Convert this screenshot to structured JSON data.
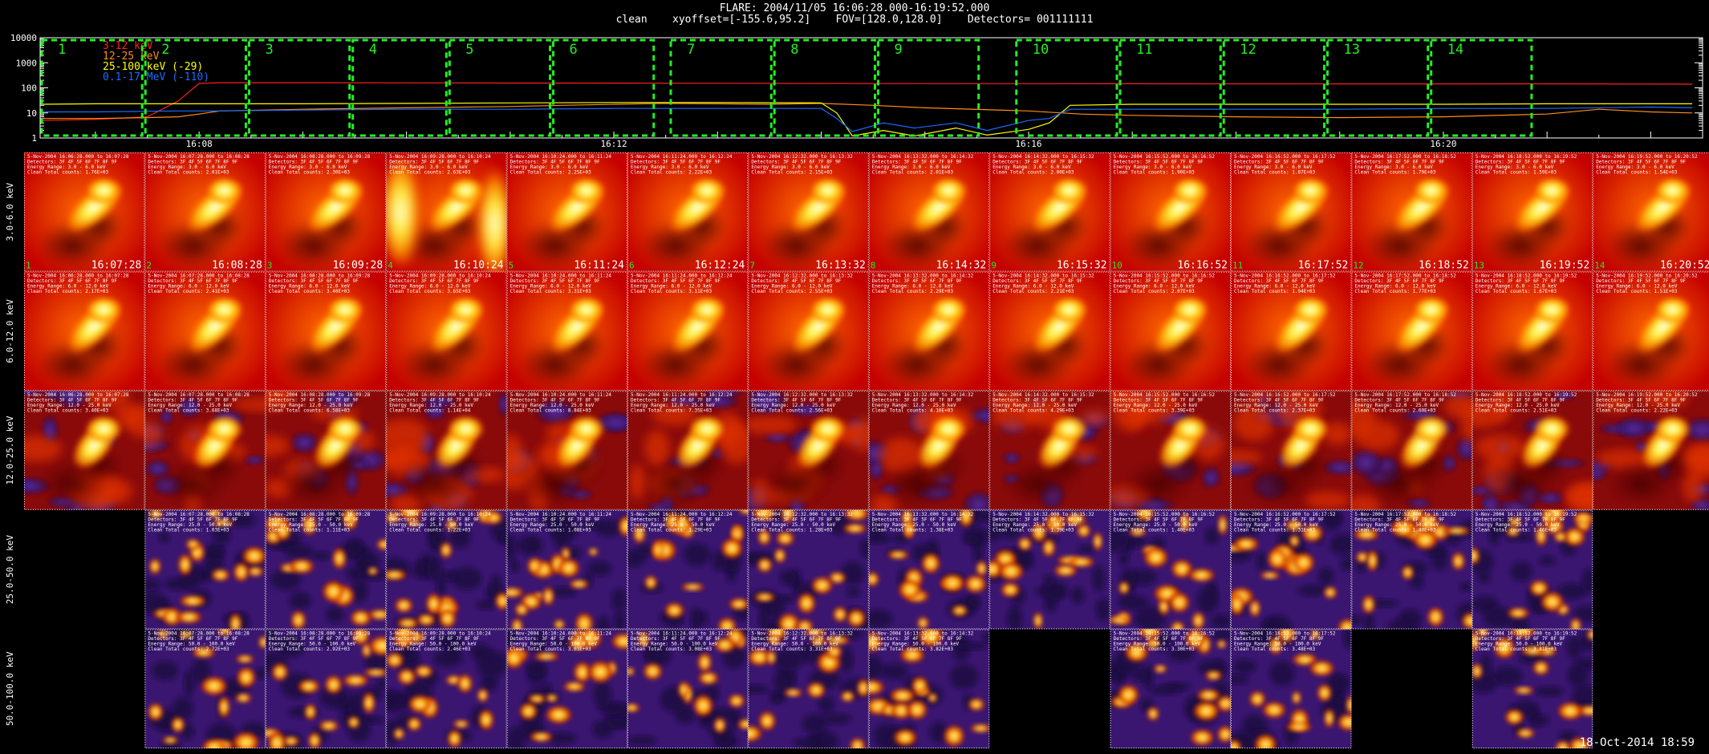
{
  "header": {
    "title_line1": "FLARE: 2004/11/05 16:06:28.000-16:19:52.000",
    "title_line2": "clean    xyoffset=[-155.6,95.2]    FOV=[128.0,128.0]    Detectors= 001111111"
  },
  "footer": {
    "stamp": "18-Oct-2014  18:59"
  },
  "colors": {
    "c1": "#ff2020",
    "c2": "#ff8c1a",
    "c3": "#ffff00",
    "c4": "#1a6cff",
    "box": "#22ee22",
    "axis": "#ffffff"
  },
  "chart_data": [
    {
      "type": "line",
      "title": "",
      "ylim": [
        1,
        10000
      ],
      "yscale": "log",
      "ytick_labels": [
        "1",
        "10",
        "100",
        "1000",
        "10000"
      ],
      "xrange": [
        "16:06:28",
        "16:22:30"
      ],
      "xtick_labels": [
        {
          "label": "16:08",
          "t": 8.0
        },
        {
          "label": "16:12",
          "t": 12.0
        },
        {
          "label": "16:16",
          "t": 16.0
        },
        {
          "label": "16:20",
          "t": 20.0
        }
      ],
      "legend": "top-left",
      "series": [
        {
          "name": "3-12 keV",
          "color": "#ff2020",
          "x": [
            6.47,
            7.0,
            7.5,
            7.8,
            8.0,
            8.2,
            9,
            10,
            11,
            12,
            13,
            14,
            15,
            16,
            17,
            18,
            19,
            20,
            21,
            22.4
          ],
          "y": [
            5,
            5.5,
            7,
            30,
            150,
            160,
            160,
            158,
            156,
            155,
            152,
            150,
            148,
            147,
            146,
            145,
            144,
            143,
            145,
            140
          ]
        },
        {
          "name": "12-25 keV",
          "color": "#ff8c1a",
          "x": [
            6.47,
            7.0,
            7.5,
            7.8,
            8.0,
            8.2,
            9,
            10,
            11,
            11.5,
            12,
            12.5,
            13,
            13.5,
            14,
            14.5,
            15,
            16,
            16.5,
            17,
            18,
            19,
            20,
            21,
            21.5,
            22,
            22.4
          ],
          "y": [
            6,
            6,
            6.5,
            7,
            9,
            12,
            14,
            16,
            18,
            20,
            22,
            24,
            23,
            22,
            24,
            20,
            16,
            12,
            9,
            8,
            7,
            6.5,
            7,
            9,
            14,
            11,
            10
          ]
        },
        {
          "name": "25-100 keV (-29)",
          "color": "#ffff00",
          "x": [
            6.47,
            7.0,
            7.8,
            8.2,
            9,
            10,
            11,
            12,
            13,
            14,
            14.15,
            14.3,
            14.6,
            14.9,
            15.3,
            15.6,
            16,
            16.2,
            16.4,
            17,
            18,
            19,
            20,
            21,
            22,
            22.4
          ],
          "y": [
            22,
            23,
            23,
            23,
            23,
            24,
            25,
            26,
            26,
            25,
            10,
            1.2,
            2,
            1.2,
            2.5,
            1.3,
            2.2,
            4,
            20,
            22,
            22,
            22,
            22,
            23,
            23,
            23
          ]
        },
        {
          "name": "0.1-17 MeV (-110)",
          "color": "#1a6cff",
          "x": [
            6.47,
            7.0,
            7.8,
            8.2,
            9,
            10,
            11,
            12,
            13,
            14,
            14.15,
            14.3,
            14.6,
            14.9,
            15.3,
            15.6,
            16,
            16.2,
            16.4,
            17,
            18,
            19,
            20,
            21,
            22,
            22.4
          ],
          "y": [
            11,
            11,
            12,
            12,
            13,
            14,
            14,
            15,
            15,
            15,
            6,
            1.8,
            4,
            2.5,
            4,
            2,
            5,
            6,
            14,
            14,
            14,
            14,
            15,
            15,
            17,
            16
          ]
        }
      ],
      "intervals": [
        {
          "label": "1",
          "start": "16:06:28",
          "end": "16:07:28"
        },
        {
          "label": "2",
          "start": "16:07:28",
          "end": "16:08:28"
        },
        {
          "label": "3",
          "start": "16:08:28",
          "end": "16:09:28"
        },
        {
          "label": "4",
          "start": "16:09:28",
          "end": "16:10:24"
        },
        {
          "label": "5",
          "start": "16:10:24",
          "end": "16:11:24"
        },
        {
          "label": "6",
          "start": "16:11:24",
          "end": "16:12:24"
        },
        {
          "label": "7",
          "start": "16:12:32",
          "end": "16:13:32"
        },
        {
          "label": "8",
          "start": "16:13:32",
          "end": "16:14:32"
        },
        {
          "label": "9",
          "start": "16:14:32",
          "end": "16:15:32"
        },
        {
          "label": "10",
          "start": "16:15:52",
          "end": "16:16:52"
        },
        {
          "label": "11",
          "start": "16:16:52",
          "end": "16:17:52"
        },
        {
          "label": "12",
          "start": "16:17:52",
          "end": "16:18:52"
        },
        {
          "label": "13",
          "start": "16:18:52",
          "end": "16:19:52"
        },
        {
          "label": "14",
          "start": "16:19:52",
          "end": "16:20:52"
        }
      ]
    },
    {
      "type": "heatmap",
      "title": "",
      "rows": [
        "3.0-6.0 keV",
        "6.0-12.0 keV",
        "12.0-25.0 keV",
        "25.0-50.0 keV",
        "50.0-100.0 keV"
      ],
      "row_energy": [
        "3.0 - 6.0 keV",
        "6.0 - 12.0 keV",
        "12.0 - 25.0 keV",
        "25.0 - 50.0 keV",
        "50.0 - 100.0 keV"
      ],
      "columns": [
        {
          "idx": "1",
          "date": "5-Nov-2004",
          "start": "16:06:28.000",
          "end": "16:07:28",
          "time": "16:07:28"
        },
        {
          "idx": "2",
          "date": "5-Nov-2004",
          "start": "16:07:28.000",
          "end": "16:08:28",
          "time": "16:08:28"
        },
        {
          "idx": "3",
          "date": "5-Nov-2004",
          "start": "16:08:28.000",
          "end": "16:09:28",
          "time": "16:09:28"
        },
        {
          "idx": "4",
          "date": "5-Nov-2004",
          "start": "16:09:28.000",
          "end": "16:10:24",
          "time": "16:10:24"
        },
        {
          "idx": "5",
          "date": "5-Nov-2004",
          "start": "16:10:24.000",
          "end": "16:11:24",
          "time": "16:11:24"
        },
        {
          "idx": "6",
          "date": "5-Nov-2004",
          "start": "16:11:24.000",
          "end": "16:12:24",
          "time": "16:12:24"
        },
        {
          "idx": "7",
          "date": "5-Nov-2004",
          "start": "16:12:32.000",
          "end": "16:13:32",
          "time": "16:13:32"
        },
        {
          "idx": "8",
          "date": "5-Nov-2004",
          "start": "16:13:32.000",
          "end": "16:14:32",
          "time": "16:14:32"
        },
        {
          "idx": "9",
          "date": "5-Nov-2004",
          "start": "16:14:32.000",
          "end": "16:15:32",
          "time": "16:15:32"
        },
        {
          "idx": "10",
          "date": "5-Nov-2004",
          "start": "16:15:52.000",
          "end": "16:16:52",
          "time": "16:16:52"
        },
        {
          "idx": "11",
          "date": "5-Nov-2004",
          "start": "16:16:52.000",
          "end": "16:17:52",
          "time": "16:17:52"
        },
        {
          "idx": "12",
          "date": "5-Nov-2004",
          "start": "16:17:52.000",
          "end": "16:18:52",
          "time": "16:18:52"
        },
        {
          "idx": "13",
          "date": "5-Nov-2004",
          "start": "16:18:52.000",
          "end": "16:19:52",
          "time": "16:19:52"
        },
        {
          "idx": "14",
          "date": "5-Nov-2004",
          "start": "16:19:52.000",
          "end": "16:20:52",
          "time": "16:20:52"
        }
      ],
      "detectors_line": "Detectors: 3F 4F 5F 6F 7F 8F 9F",
      "energy_label": "Energy Range:",
      "clean_label": "Clean",
      "counts_label": "Total counts:",
      "present": [
        [
          1,
          1,
          1,
          1,
          1,
          1,
          1,
          1,
          1,
          1,
          1,
          1,
          1,
          1
        ],
        [
          1,
          1,
          1,
          1,
          1,
          1,
          1,
          1,
          1,
          1,
          1,
          1,
          1,
          1
        ],
        [
          1,
          1,
          1,
          1,
          1,
          1,
          1,
          1,
          1,
          1,
          1,
          1,
          1,
          1
        ],
        [
          0,
          1,
          1,
          1,
          1,
          1,
          1,
          1,
          1,
          1,
          1,
          1,
          1,
          0
        ],
        [
          0,
          1,
          1,
          1,
          1,
          1,
          1,
          1,
          0,
          1,
          1,
          0,
          1,
          0
        ]
      ],
      "counts": [
        [
          "1.76E+03",
          "2.01E+03",
          "2.30E+03",
          "2.63E+03",
          "2.25E+03",
          "2.22E+03",
          "2.15E+03",
          "2.01E+03",
          "2.00E+03",
          "1.90E+03",
          "1.87E+03",
          "1.79E+03",
          "1.59E+03",
          "1.54E+03"
        ],
        [
          "2.17E+03",
          "2.41E+03",
          "3.40E+03",
          "3.65E+03",
          "3.31E+03",
          "3.11E+03",
          "2.55E+03",
          "2.29E+03",
          "2.21E+03",
          "2.07E+03",
          "1.94E+03",
          "1.77E+03",
          "1.67E+03",
          "1.51E+03"
        ],
        [
          "3.40E+03",
          "3.68E+03",
          "6.58E+03",
          "1.14E+04",
          "8.84E+03",
          "7.35E+03",
          "2.56E+03",
          "4.16E+03",
          "4.29E+03",
          "3.39E+03",
          "2.37E+03",
          "2.60E+03",
          "2.51E+03",
          "2.22E+03"
        ],
        [
          "",
          "1.03E+03",
          "1.11E+03",
          "1.22E+03",
          "1.08E+03",
          "1.29E+03",
          "1.28E+03",
          "1.38E+03",
          "1.39E+03",
          "1.40E+03",
          "1.31E+03",
          "1.40E+03",
          "1.46E+03",
          ""
        ],
        [
          "",
          "2.72E+03",
          "2.92E+03",
          "2.46E+03",
          "3.03E+03",
          "3.08E+03",
          "3.31E+03",
          "3.82E+03",
          "",
          "3.30E+03",
          "3.48E+03",
          "",
          "3.81E+03",
          ""
        ]
      ]
    }
  ]
}
